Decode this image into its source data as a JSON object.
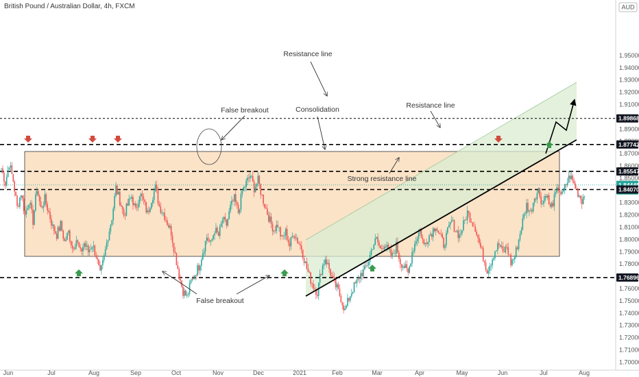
{
  "header": {
    "symbol": "British Pound / Australian Dollar, 4h, FXCM"
  },
  "currency_badge": "AUD",
  "chart_data": {
    "type": "candlestick",
    "title": "British Pound / Australian Dollar, 4h, FXCM",
    "ylim": [
      1.695,
      1.965
    ],
    "y_ticks": [
      "1.70000",
      "1.71000",
      "1.72000",
      "1.73000",
      "1.74000",
      "1.75000",
      "1.76000",
      "1.77000",
      "1.78000",
      "1.79000",
      "1.80000",
      "1.81000",
      "1.82000",
      "1.83000",
      "1.84000",
      "1.85000",
      "1.86000",
      "1.87000",
      "1.88000",
      "1.89000",
      "1.90000",
      "1.91000",
      "1.92000",
      "1.93000",
      "1.94000",
      "1.95000"
    ],
    "x_ticks": [
      "Jun",
      "Jul",
      "Aug",
      "Sep",
      "Oct",
      "Nov",
      "Dec",
      "2021",
      "Feb",
      "Mar",
      "Apr",
      "May",
      "Jun",
      "Jul",
      "Aug"
    ],
    "price_path": [
      [
        0,
        1.858
      ],
      [
        3,
        1.846
      ],
      [
        6,
        1.862
      ],
      [
        9,
        1.848
      ],
      [
        12,
        1.826
      ],
      [
        15,
        1.838
      ],
      [
        18,
        1.82
      ],
      [
        21,
        1.832
      ],
      [
        24,
        1.815
      ],
      [
        27,
        1.842
      ],
      [
        30,
        1.825
      ],
      [
        33,
        1.833
      ],
      [
        36,
        1.822
      ],
      [
        39,
        1.81
      ],
      [
        42,
        1.804
      ],
      [
        45,
        1.812
      ],
      [
        48,
        1.798
      ],
      [
        51,
        1.806
      ],
      [
        54,
        1.793
      ],
      [
        57,
        1.8
      ],
      [
        60,
        1.789
      ],
      [
        63,
        1.797
      ],
      [
        66,
        1.79
      ],
      [
        69,
        1.796
      ],
      [
        72,
        1.787
      ],
      [
        75,
        1.771
      ],
      [
        78,
        1.785
      ],
      [
        81,
        1.803
      ],
      [
        84,
        1.818
      ],
      [
        87,
        1.842
      ],
      [
        90,
        1.832
      ],
      [
        93,
        1.82
      ],
      [
        96,
        1.828
      ],
      [
        99,
        1.835
      ],
      [
        102,
        1.823
      ],
      [
        105,
        1.838
      ],
      [
        108,
        1.831
      ],
      [
        111,
        1.821
      ],
      [
        114,
        1.833
      ],
      [
        117,
        1.842
      ],
      [
        120,
        1.827
      ],
      [
        123,
        1.822
      ],
      [
        126,
        1.814
      ],
      [
        129,
        1.806
      ],
      [
        132,
        1.788
      ],
      [
        135,
        1.771
      ],
      [
        138,
        1.758
      ],
      [
        141,
        1.753
      ],
      [
        144,
        1.765
      ],
      [
        147,
        1.772
      ],
      [
        150,
        1.778
      ],
      [
        153,
        1.79
      ],
      [
        156,
        1.802
      ],
      [
        159,
        1.796
      ],
      [
        162,
        1.808
      ],
      [
        165,
        1.803
      ],
      [
        168,
        1.816
      ],
      [
        171,
        1.812
      ],
      [
        174,
        1.826
      ],
      [
        177,
        1.833
      ],
      [
        180,
        1.822
      ],
      [
        183,
        1.839
      ],
      [
        186,
        1.846
      ],
      [
        189,
        1.852
      ],
      [
        192,
        1.842
      ],
      [
        195,
        1.848
      ],
      [
        198,
        1.835
      ],
      [
        201,
        1.825
      ],
      [
        204,
        1.815
      ],
      [
        207,
        1.808
      ],
      [
        210,
        1.812
      ],
      [
        213,
        1.8
      ],
      [
        216,
        1.806
      ],
      [
        219,
        1.795
      ],
      [
        222,
        1.806
      ],
      [
        225,
        1.799
      ],
      [
        228,
        1.793
      ],
      [
        231,
        1.78
      ],
      [
        234,
        1.77
      ],
      [
        237,
        1.762
      ],
      [
        240,
        1.757
      ],
      [
        243,
        1.775
      ],
      [
        246,
        1.785
      ],
      [
        249,
        1.776
      ],
      [
        252,
        1.766
      ],
      [
        255,
        1.76
      ],
      [
        258,
        1.752
      ],
      [
        261,
        1.742
      ],
      [
        264,
        1.752
      ],
      [
        267,
        1.76
      ],
      [
        270,
        1.765
      ],
      [
        273,
        1.772
      ],
      [
        276,
        1.775
      ],
      [
        279,
        1.783
      ],
      [
        282,
        1.795
      ],
      [
        285,
        1.8
      ],
      [
        288,
        1.792
      ],
      [
        291,
        1.797
      ],
      [
        294,
        1.79
      ],
      [
        297,
        1.786
      ],
      [
        300,
        1.795
      ],
      [
        303,
        1.782
      ],
      [
        306,
        1.778
      ],
      [
        309,
        1.772
      ],
      [
        312,
        1.79
      ],
      [
        315,
        1.8
      ],
      [
        318,
        1.808
      ],
      [
        321,
        1.795
      ],
      [
        324,
        1.802
      ],
      [
        327,
        1.806
      ],
      [
        330,
        1.812
      ],
      [
        333,
        1.803
      ],
      [
        336,
        1.796
      ],
      [
        339,
        1.806
      ],
      [
        342,
        1.815
      ],
      [
        345,
        1.808
      ],
      [
        348,
        1.803
      ],
      [
        351,
        1.812
      ],
      [
        354,
        1.822
      ],
      [
        357,
        1.816
      ],
      [
        360,
        1.81
      ],
      [
        363,
        1.797
      ],
      [
        366,
        1.786
      ],
      [
        369,
        1.775
      ],
      [
        372,
        1.782
      ],
      [
        375,
        1.791
      ],
      [
        378,
        1.796
      ],
      [
        381,
        1.789
      ],
      [
        384,
        1.794
      ],
      [
        387,
        1.781
      ],
      [
        390,
        1.786
      ],
      [
        393,
        1.8
      ],
      [
        396,
        1.815
      ],
      [
        399,
        1.828
      ],
      [
        402,
        1.822
      ],
      [
        405,
        1.835
      ],
      [
        408,
        1.84
      ],
      [
        411,
        1.829
      ],
      [
        414,
        1.838
      ],
      [
        417,
        1.825
      ],
      [
        420,
        1.833
      ],
      [
        423,
        1.842
      ],
      [
        426,
        1.836
      ],
      [
        429,
        1.845
      ],
      [
        432,
        1.852
      ],
      [
        435,
        1.845
      ],
      [
        438,
        1.838
      ],
      [
        441,
        1.832
      ],
      [
        444,
        1.84
      ]
    ],
    "levels": [
      {
        "value": 1.89868,
        "label": "1.89868",
        "style": "dashed-thin",
        "tag": "dark"
      },
      {
        "value": 1.87742,
        "label": "1.87742",
        "style": "dashed",
        "tag": "dark"
      },
      {
        "value": 1.85547,
        "label": "1.85547",
        "style": "dashed",
        "tag": "dark"
      },
      {
        "value": 1.84445,
        "label": "1.84445",
        "style": "current",
        "tag": "teal",
        "sub": "27:37"
      },
      {
        "value": 1.8407,
        "label": "1.84070",
        "style": "dashed",
        "tag": "dark"
      },
      {
        "value": 1.76896,
        "label": "1.76896",
        "style": "dashed",
        "tag": "dark"
      }
    ],
    "annotations": [
      "Resistance line",
      "False breakout",
      "Consolidation",
      "Resistance line",
      "Strong resistance line",
      "False breakout"
    ],
    "colors": {
      "up": "#26a69a",
      "down": "#ef5350",
      "rect_fill": "#fbe3c8",
      "channel_fill": "#d9ecd1",
      "tag_dark": "#131722",
      "tag_current": "#26a69a",
      "arrow_red": "#d24b3c",
      "arrow_green": "#3c9a4e"
    }
  }
}
